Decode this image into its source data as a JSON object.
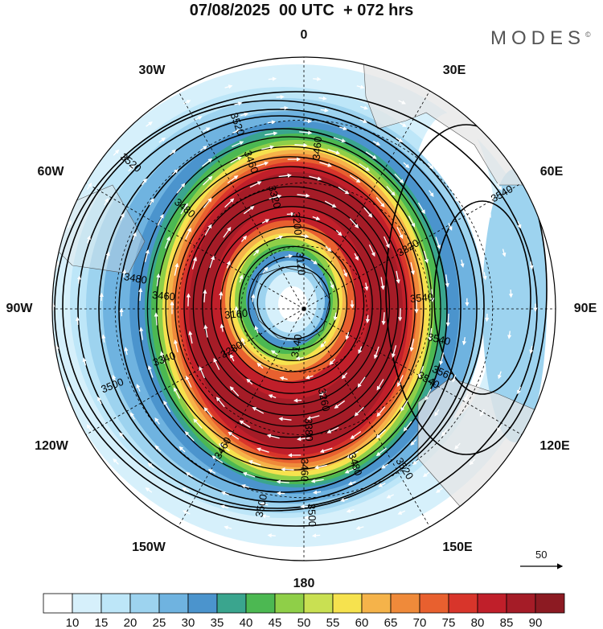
{
  "header": {
    "title": "07/08/2025  00 UTC  + 072 hrs",
    "brand": "MODES",
    "brand_mark": "©"
  },
  "longitude_labels": [
    "0",
    "30E",
    "60E",
    "90E",
    "120E",
    "150E",
    "180",
    "150W",
    "120W",
    "90W",
    "60W",
    "30W"
  ],
  "wind_speed_colorbar": {
    "ticks": [
      "10",
      "15",
      "20",
      "25",
      "30",
      "35",
      "40",
      "45",
      "50",
      "55",
      "60",
      "65",
      "70",
      "75",
      "80",
      "85",
      "90"
    ],
    "colors": [
      "#ffffff",
      "#d6f0fb",
      "#bde6f8",
      "#9dd3ef",
      "#6fb3e0",
      "#4b94cd",
      "#3aa58e",
      "#4cb852",
      "#8fcf48",
      "#c9e052",
      "#f6e24e",
      "#f5b34a",
      "#ef8a3a",
      "#e8602f",
      "#d8352b",
      "#c01f2a",
      "#a51c27",
      "#8c1a22"
    ]
  },
  "contour_labels": [
    {
      "text": "3520",
      "lon": -20,
      "rad": 0.78
    },
    {
      "text": "3520",
      "lon": -50,
      "rad": 0.9
    },
    {
      "text": "3480",
      "lon": -50,
      "rad": 0.62
    },
    {
      "text": "3460",
      "lon": -20,
      "rad": 0.62
    },
    {
      "text": "3460",
      "lon": 5,
      "rad": 0.64
    },
    {
      "text": "3320",
      "lon": -15,
      "rad": 0.46
    },
    {
      "text": "3200",
      "lon": -5,
      "rad": 0.34
    },
    {
      "text": "3120",
      "lon": -5,
      "rad": 0.18
    },
    {
      "text": "3480",
      "lon": -80,
      "rad": 0.68
    },
    {
      "text": "3460",
      "lon": -85,
      "rad": 0.56
    },
    {
      "text": "3160",
      "lon": -95,
      "rad": 0.27
    },
    {
      "text": "3340",
      "lon": -110,
      "rad": 0.59
    },
    {
      "text": "3280",
      "lon": -120,
      "rad": 0.33
    },
    {
      "text": "3140",
      "lon": -170,
      "rad": 0.15
    },
    {
      "text": "3500",
      "lon": -112,
      "rad": 0.82
    },
    {
      "text": "3320",
      "lon": 60,
      "rad": 0.48
    },
    {
      "text": "3540",
      "lon": 85,
      "rad": 0.47
    },
    {
      "text": "3540",
      "lon": 103,
      "rad": 0.55
    },
    {
      "text": "3560",
      "lon": 115,
      "rad": 0.61
    },
    {
      "text": "3540",
      "lon": 120,
      "rad": 0.57
    },
    {
      "text": "3540",
      "lon": 60,
      "rad": 0.91
    },
    {
      "text": "3520",
      "lon": 148,
      "rad": 0.75
    },
    {
      "text": "3480",
      "lon": 162,
      "rad": 0.65
    },
    {
      "text": "3460",
      "lon": 180,
      "rad": 0.64
    },
    {
      "text": "3500",
      "lon": -168,
      "rad": 0.8
    },
    {
      "text": "3500",
      "lon": 178,
      "rad": 0.82
    },
    {
      "text": "3460",
      "lon": -150,
      "rad": 0.64
    },
    {
      "text": "3260",
      "lon": 168,
      "rad": 0.37
    },
    {
      "text": "3380",
      "lon": 178,
      "rad": 0.48
    }
  ],
  "reference_vector": {
    "label": "50"
  }
}
